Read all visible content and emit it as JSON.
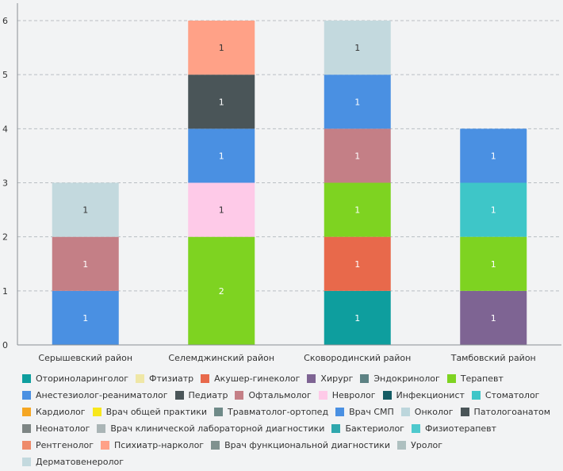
{
  "chart_data": {
    "type": "bar",
    "stacked": true,
    "categories": [
      "Серышевский район",
      "Селемджинский район",
      "Сковородинский район",
      "Тамбовский район"
    ],
    "ylim": [
      0,
      6
    ],
    "yticks": [
      0,
      1,
      2,
      3,
      4,
      5,
      6
    ],
    "grid": true,
    "legend_position": "bottom",
    "series": [
      {
        "name": "Оториноларинголог",
        "color": "#0e9e9e",
        "values": [
          0,
          0,
          1,
          0
        ]
      },
      {
        "name": "Фтизиатр",
        "color": "#efe7a6",
        "values": [
          0,
          0,
          0,
          0
        ]
      },
      {
        "name": "Акушер-гинеколог",
        "color": "#e8694b",
        "values": [
          0,
          0,
          1,
          0
        ]
      },
      {
        "name": "Хирург",
        "color": "#7e6493",
        "values": [
          0,
          0,
          0,
          1
        ]
      },
      {
        "name": "Эндокринолог",
        "color": "#5d8284",
        "values": [
          0,
          0,
          0,
          0
        ]
      },
      {
        "name": "Терапевт",
        "color": "#7ed321",
        "values": [
          0,
          2,
          1,
          1
        ]
      },
      {
        "name": "Анестезиолог-реаниматолог",
        "color": "#4a90e2",
        "values": [
          1,
          0,
          0,
          0
        ]
      },
      {
        "name": "Педиатр",
        "color": "#4a5558",
        "values": [
          0,
          0,
          0,
          0
        ]
      },
      {
        "name": "Офтальмолог",
        "color": "#c47f86",
        "values": [
          1,
          0,
          1,
          0
        ]
      },
      {
        "name": "Невролог",
        "color": "#fecae8",
        "values": [
          0,
          1,
          0,
          0
        ]
      },
      {
        "name": "Инфекционист",
        "color": "#145c64",
        "values": [
          0,
          0,
          0,
          0
        ]
      },
      {
        "name": "Стоматолог",
        "color": "#3ec6c8",
        "values": [
          0,
          0,
          0,
          1
        ]
      },
      {
        "name": "Кардиолог",
        "color": "#f5a623",
        "values": [
          0,
          0,
          0,
          0
        ]
      },
      {
        "name": "Врач общей практики",
        "color": "#f8e71c",
        "values": [
          0,
          0,
          0,
          0
        ]
      },
      {
        "name": "Травматолог-ортопед",
        "color": "#6f8a88",
        "values": [
          0,
          0,
          0,
          0
        ]
      },
      {
        "name": "Врач СМП",
        "color": "#4a90e2",
        "values": [
          0,
          1,
          1,
          1
        ]
      },
      {
        "name": "Онколог",
        "color": "#bcd6dc",
        "values": [
          0,
          0,
          0,
          0
        ]
      },
      {
        "name": "Патологоанатом",
        "color": "#4a5558",
        "values": [
          0,
          1,
          0,
          0
        ]
      },
      {
        "name": "Неонатолог",
        "color": "#7d8584",
        "values": [
          0,
          0,
          0,
          0
        ]
      },
      {
        "name": "Врач клинической лабораторной диагностики",
        "color": "#aab5b6",
        "values": [
          0,
          0,
          0,
          0
        ]
      },
      {
        "name": "Бактериолог",
        "color": "#2fa7ad",
        "values": [
          0,
          0,
          0,
          0
        ]
      },
      {
        "name": "Физиотерапевт",
        "color": "#4ec9cd",
        "values": [
          0,
          0,
          0,
          0
        ]
      },
      {
        "name": "Рентгенолог",
        "color": "#ee8a6a",
        "values": [
          0,
          0,
          0,
          0
        ]
      },
      {
        "name": "Психиатр-нарколог",
        "color": "#ffa187",
        "values": [
          0,
          1,
          0,
          0
        ]
      },
      {
        "name": "Врач функциональной диагностики",
        "color": "#80928f",
        "values": [
          0,
          0,
          0,
          0
        ]
      },
      {
        "name": "Уролог",
        "color": "#aec0c0",
        "values": [
          0,
          0,
          0,
          0
        ]
      },
      {
        "name": "Дерматовенеролог",
        "color": "#c3d9de",
        "values": [
          1,
          0,
          1,
          0
        ]
      }
    ]
  }
}
